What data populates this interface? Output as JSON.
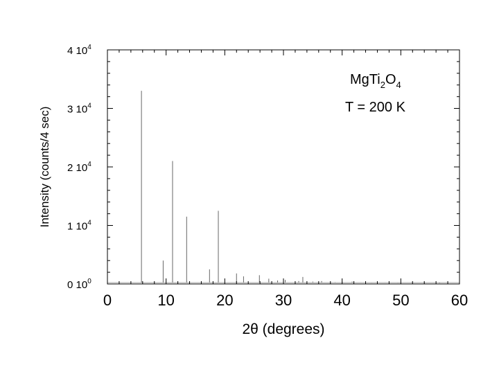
{
  "chart_data": {
    "type": "bar",
    "xlabel": "2θ (degrees)",
    "ylabel": "Intensity (counts/4 sec)",
    "xlim": [
      0,
      60
    ],
    "ylim": [
      0,
      40000
    ],
    "x_ticks": [
      "0",
      "10",
      "20",
      "30",
      "40",
      "50",
      "60"
    ],
    "y_ticks": [
      {
        "base": "0 10",
        "exp": "0"
      },
      {
        "base": "1 10",
        "exp": "4"
      },
      {
        "base": "2 10",
        "exp": "4"
      },
      {
        "base": "3 10",
        "exp": "4"
      },
      {
        "base": "4 10",
        "exp": "4"
      }
    ],
    "annotation": {
      "formula_parts": [
        {
          "text": "MgTi",
          "sub": false
        },
        {
          "text": "2",
          "sub": true
        },
        {
          "text": "O",
          "sub": false
        },
        {
          "text": "4",
          "sub": true
        }
      ],
      "temperature": "T = 200 K"
    },
    "grid": false,
    "peaks": [
      {
        "x": 5.8,
        "y": 33000
      },
      {
        "x": 9.5,
        "y": 4000
      },
      {
        "x": 11.1,
        "y": 21000
      },
      {
        "x": 13.5,
        "y": 11500
      },
      {
        "x": 17.4,
        "y": 2500
      },
      {
        "x": 18.9,
        "y": 12500
      },
      {
        "x": 22.0,
        "y": 1800
      },
      {
        "x": 23.2,
        "y": 1300
      },
      {
        "x": 25.9,
        "y": 1500
      },
      {
        "x": 27.5,
        "y": 900
      },
      {
        "x": 29.0,
        "y": 600
      },
      {
        "x": 30.3,
        "y": 700
      },
      {
        "x": 32.6,
        "y": 500
      },
      {
        "x": 33.3,
        "y": 1200
      },
      {
        "x": 35.0,
        "y": 400
      },
      {
        "x": 36.5,
        "y": 500
      },
      {
        "x": 38.8,
        "y": 300
      },
      {
        "x": 40.1,
        "y": 300
      },
      {
        "x": 41.7,
        "y": 400
      },
      {
        "x": 43.2,
        "y": 250
      },
      {
        "x": 45.0,
        "y": 200
      },
      {
        "x": 47.3,
        "y": 250
      },
      {
        "x": 49.5,
        "y": 200
      },
      {
        "x": 51.8,
        "y": 200
      },
      {
        "x": 54.0,
        "y": 150
      },
      {
        "x": 56.6,
        "y": 150
      }
    ]
  }
}
